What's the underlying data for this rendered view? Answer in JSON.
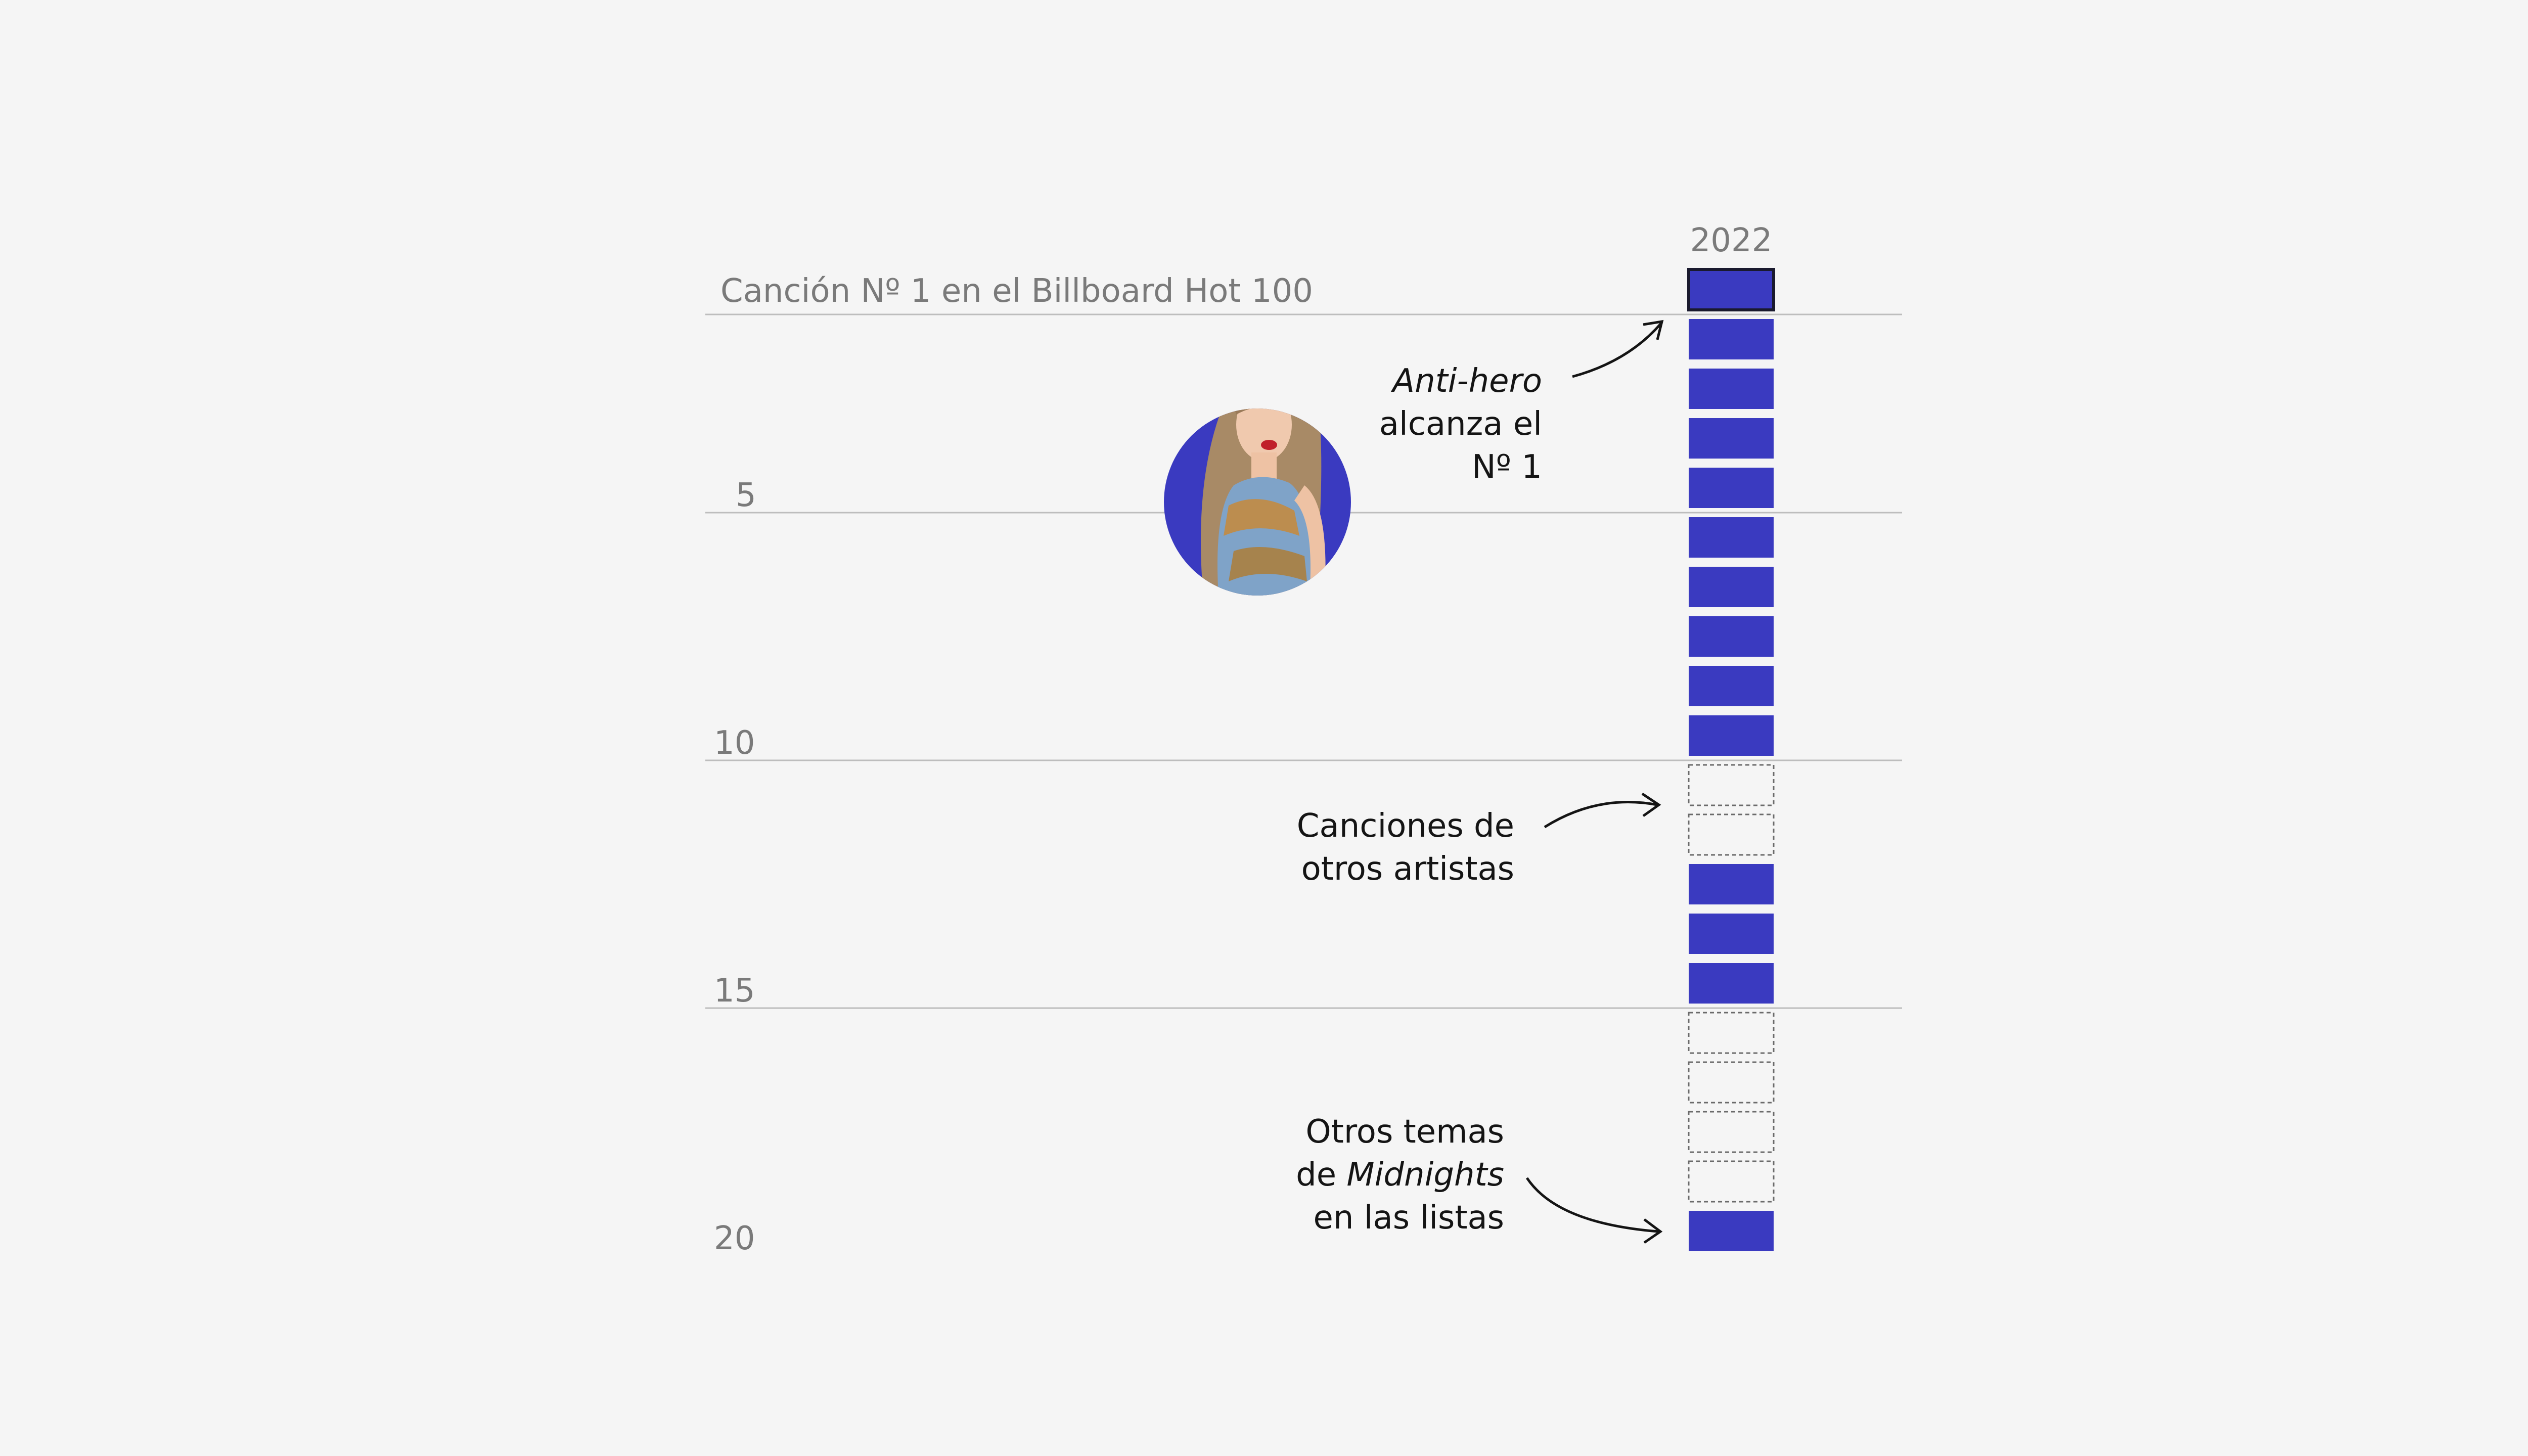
{
  "colors": {
    "background": "#f5f5f5",
    "taylor_bar": "#3a3ac0",
    "highlight_outline": "#1a1a2e",
    "other_artist_outline": "#6b6b6b",
    "gridline": "#bdbdbd",
    "axis_text": "#7a7a7a",
    "annotation_text": "#141414",
    "photo_circle": "#3a3ac0"
  },
  "chart_data": {
    "type": "table",
    "title": "Canción Nº 1 en el Billboard Hot 100",
    "column": "2022",
    "y_ticks": [
      "5",
      "10",
      "15",
      "20"
    ],
    "y_tick_values": [
      5,
      10,
      15,
      20
    ],
    "y_range": [
      1,
      20
    ],
    "positions": [
      {
        "rank": 1,
        "artist": "taylor",
        "highlight": true
      },
      {
        "rank": 2,
        "artist": "taylor"
      },
      {
        "rank": 3,
        "artist": "taylor"
      },
      {
        "rank": 4,
        "artist": "taylor"
      },
      {
        "rank": 5,
        "artist": "taylor"
      },
      {
        "rank": 6,
        "artist": "taylor"
      },
      {
        "rank": 7,
        "artist": "taylor"
      },
      {
        "rank": 8,
        "artist": "taylor"
      },
      {
        "rank": 9,
        "artist": "taylor"
      },
      {
        "rank": 10,
        "artist": "taylor"
      },
      {
        "rank": 11,
        "artist": "other"
      },
      {
        "rank": 12,
        "artist": "other"
      },
      {
        "rank": 13,
        "artist": "taylor"
      },
      {
        "rank": 14,
        "artist": "taylor"
      },
      {
        "rank": 15,
        "artist": "taylor"
      },
      {
        "rank": 16,
        "artist": "other"
      },
      {
        "rank": 17,
        "artist": "other"
      },
      {
        "rank": 18,
        "artist": "other"
      },
      {
        "rank": 19,
        "artist": "other"
      },
      {
        "rank": 20,
        "artist": "taylor"
      }
    ],
    "annotations": {
      "anti_hero": {
        "song": "Anti-hero",
        "line1_rest": "",
        "line2": "alcanza el",
        "line3": "Nº 1"
      },
      "other_artists": {
        "line1": "Canciones de",
        "line2": "otros artistas"
      },
      "midnights": {
        "line1": "Otros temas",
        "line2_prefix": "de ",
        "line2_album": "Midnights",
        "line3": "en las listas"
      }
    }
  },
  "photo": {
    "icon": "artist-photo-circle"
  }
}
